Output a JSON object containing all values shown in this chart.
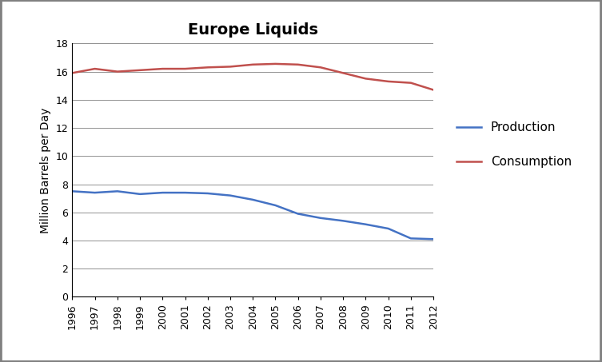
{
  "title": "Europe Liquids",
  "ylabel": "Million Barrels per Day",
  "years": [
    1996,
    1997,
    1998,
    1999,
    2000,
    2001,
    2002,
    2003,
    2004,
    2005,
    2006,
    2007,
    2008,
    2009,
    2010,
    2011,
    2012
  ],
  "production": [
    7.5,
    7.4,
    7.5,
    7.3,
    7.4,
    7.4,
    7.35,
    7.2,
    6.9,
    6.5,
    5.9,
    5.6,
    5.4,
    5.15,
    4.85,
    4.15,
    4.1
  ],
  "consumption": [
    15.9,
    16.2,
    16.0,
    16.1,
    16.2,
    16.2,
    16.3,
    16.35,
    16.5,
    16.55,
    16.5,
    16.3,
    15.9,
    15.5,
    15.3,
    15.2,
    14.7
  ],
  "production_color": "#4472C4",
  "consumption_color": "#C0504D",
  "line_width": 1.8,
  "ylim": [
    0,
    18
  ],
  "yticks": [
    0,
    2,
    4,
    6,
    8,
    10,
    12,
    14,
    16,
    18
  ],
  "legend_labels": [
    "Production",
    "Consumption"
  ],
  "background_color": "#ffffff",
  "figure_facecolor": "#ffffff",
  "grid_color": "#808080",
  "border_color": "#808080",
  "title_fontsize": 14,
  "axis_fontsize": 10,
  "tick_fontsize": 9,
  "legend_fontsize": 11
}
